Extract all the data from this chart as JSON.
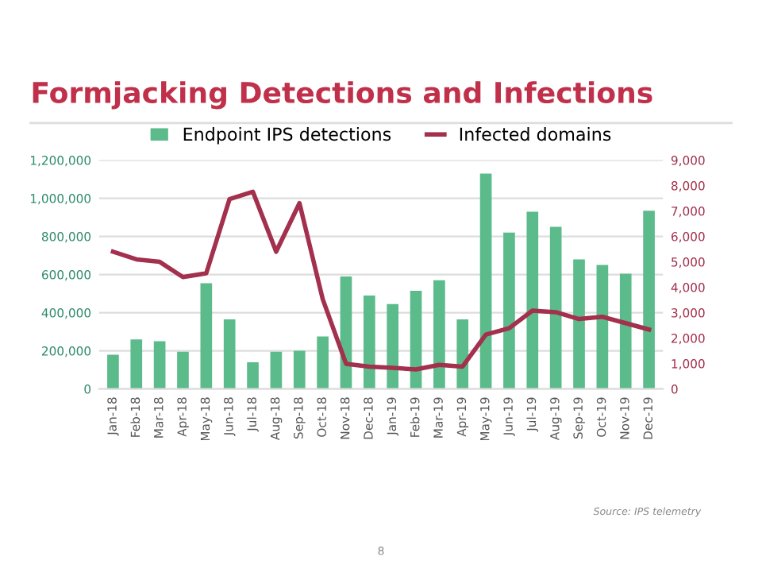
{
  "chart_data": {
    "type": "bar",
    "title": "Formjacking Detections and Infections",
    "categories": [
      "Jan-18",
      "Feb-18",
      "Mar-18",
      "Apr-18",
      "May-18",
      "Jun-18",
      "Jul-18",
      "Aug-18",
      "Sep-18",
      "Oct-18",
      "Nov-18",
      "Dec-18",
      "Jan-19",
      "Feb-19",
      "Mar-19",
      "Apr-19",
      "May-19",
      "Jun-19",
      "Jul-19",
      "Aug-19",
      "Sep-19",
      "Oct-19",
      "Nov-19",
      "Dec-19"
    ],
    "series": [
      {
        "name": "Endpoint IPS detections",
        "color": "#5cbb8a",
        "values": [
          180000,
          260000,
          250000,
          195000,
          555000,
          365000,
          140000,
          195000,
          200000,
          275000,
          590000,
          490000,
          445000,
          515000,
          570000,
          365000,
          1130000,
          820000,
          930000,
          850000,
          680000,
          650000,
          605000,
          935000
        ]
      },
      {
        "name": "Infected domains",
        "type": "line",
        "axis": "y2",
        "color": "#a3304c",
        "values": [
          5400,
          5100,
          5000,
          4400,
          4550,
          7470,
          7760,
          5400,
          7310,
          3530,
          990,
          880,
          830,
          770,
          950,
          880,
          2140,
          2390,
          3080,
          3020,
          2750,
          2840,
          2590,
          2340
        ]
      }
    ],
    "ylim": [
      0,
      1200000
    ],
    "yticks": [
      {
        "value": 0,
        "label": "0"
      },
      {
        "value": 200000,
        "label": "200,000"
      },
      {
        "value": 400000,
        "label": "400,000"
      },
      {
        "value": 600000,
        "label": "600,000"
      },
      {
        "value": 800000,
        "label": "800,000"
      },
      {
        "value": 1000000,
        "label": "1,000,000"
      },
      {
        "value": 1200000,
        "label": "1,200,000"
      }
    ],
    "y2lim": [
      0,
      9000
    ],
    "y2ticks": [
      {
        "value": 0,
        "label": "0"
      },
      {
        "value": 1000,
        "label": "1,000"
      },
      {
        "value": 2000,
        "label": "2,000"
      },
      {
        "value": 3000,
        "label": "3,000"
      },
      {
        "value": 4000,
        "label": "4,000"
      },
      {
        "value": 5000,
        "label": "5,000"
      },
      {
        "value": 6000,
        "label": "6,000"
      },
      {
        "value": 7000,
        "label": "7,000"
      },
      {
        "value": 8000,
        "label": "8,000"
      },
      {
        "value": 9000,
        "label": "9,000"
      }
    ],
    "grid": "y",
    "legend": "top",
    "marker": "none",
    "line_style": "solid",
    "annotations": [
      "Source: IPS telemetry",
      "8"
    ]
  }
}
